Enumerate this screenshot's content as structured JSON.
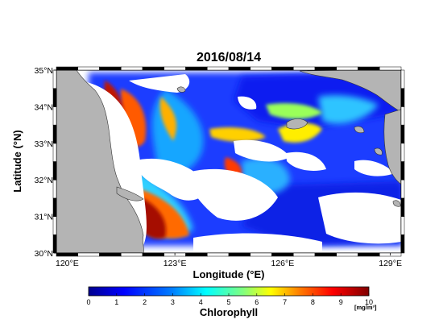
{
  "chart_data": {
    "type": "heatmap",
    "title": "2016/08/14",
    "xlabel": "Longitude (°E)",
    "ylabel": "Latitude (°N)",
    "xlim": [
      119.7,
      129.3
    ],
    "ylim": [
      30,
      35
    ],
    "xticks": [
      {
        "value": 120,
        "label": "120°E"
      },
      {
        "value": 123,
        "label": "123°E"
      },
      {
        "value": 126,
        "label": "126°E"
      },
      {
        "value": 129,
        "label": "129°E"
      }
    ],
    "yticks": [
      {
        "value": 30,
        "label": "30°N"
      },
      {
        "value": 31,
        "label": "31°N"
      },
      {
        "value": 32,
        "label": "32°N"
      },
      {
        "value": 33,
        "label": "33°N"
      },
      {
        "value": 34,
        "label": "34°N"
      },
      {
        "value": 35,
        "label": "35°N"
      }
    ],
    "colorbar": {
      "label": "Chlorophyll",
      "unit": "[mg/m³]",
      "min": 0,
      "max": 10,
      "ticks": [
        "0",
        "1",
        "2",
        "3",
        "4",
        "5",
        "6",
        "7",
        "8",
        "9",
        "10"
      ],
      "colormap": [
        "#00008f",
        "#0000ff",
        "#0080ff",
        "#00ffff",
        "#80ff80",
        "#ffff00",
        "#ff8000",
        "#ff0000",
        "#800000"
      ]
    },
    "colors": {
      "land": "#b4b4b4",
      "no_data": "#ffffff"
    }
  }
}
